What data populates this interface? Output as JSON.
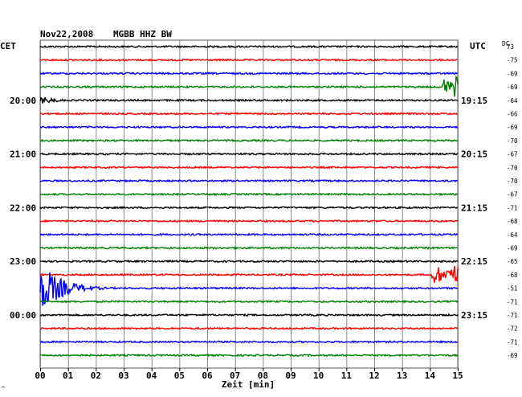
{
  "header": {
    "date": "Nov22,2008",
    "station": "MGBB HHZ BW",
    "left_tz": "CET",
    "right_tz": "UTC",
    "dc_label": "DC"
  },
  "chart_data": {
    "type": "line",
    "title": "Nov22,2008   MGBB HHZ BW",
    "xlabel": "Zeit [min]",
    "x_ticks": [
      "00",
      "01",
      "02",
      "03",
      "04",
      "05",
      "06",
      "07",
      "08",
      "09",
      "10",
      "11",
      "12",
      "13",
      "14",
      "15"
    ],
    "xlim": [
      0,
      15
    ],
    "grid": true,
    "trace_colors": [
      "#000000",
      "#ff0000",
      "#0000ff",
      "#008000"
    ],
    "left_time_labels": [
      {
        "row": 4,
        "label": "20:00"
      },
      {
        "row": 8,
        "label": "21:00"
      },
      {
        "row": 12,
        "label": "22:00"
      },
      {
        "row": 16,
        "label": "23:00"
      },
      {
        "row": 20,
        "label": "00:00"
      }
    ],
    "right_time_labels": [
      {
        "row": 4,
        "label": "19:15"
      },
      {
        "row": 8,
        "label": "20:15"
      },
      {
        "row": 12,
        "label": "21:15"
      },
      {
        "row": 16,
        "label": "22:15"
      },
      {
        "row": 20,
        "label": "23:15"
      }
    ],
    "dc_offsets": [
      "73",
      "-75",
      "-69",
      "-69",
      "-64",
      "-66",
      "-69",
      "-70",
      "-67",
      "-70",
      "-70",
      "-67",
      "-71",
      "-68",
      "-64",
      "-69",
      "-65",
      "-68",
      "-51",
      "-71",
      "-71",
      "-72",
      "-71",
      "-69"
    ],
    "events": [
      {
        "row": 3,
        "start_min": 14.4,
        "end_min": 15.0,
        "amplitude": "large"
      },
      {
        "row": 4,
        "start_min": 0.0,
        "end_min": 2.0,
        "amplitude": "medium"
      },
      {
        "row": 17,
        "start_min": 14.0,
        "end_min": 15.0,
        "amplitude": "large"
      },
      {
        "row": 18,
        "start_min": 0.0,
        "end_min": 2.4,
        "amplitude": "very large"
      }
    ]
  }
}
